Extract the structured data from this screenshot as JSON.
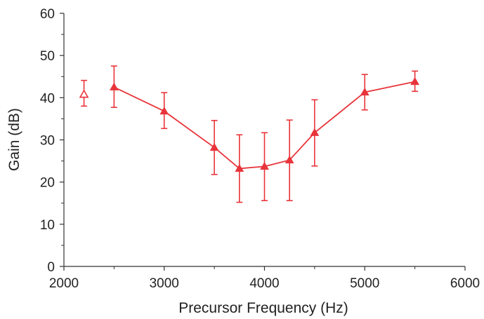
{
  "chart_data": {
    "type": "line",
    "title": "",
    "xlabel": "Precursor Frequency (Hz)",
    "ylabel": "Gain (dB)",
    "xlim": [
      2000,
      6000
    ],
    "ylim": [
      0,
      60
    ],
    "x_ticks": [
      2000,
      3000,
      4000,
      5000,
      6000
    ],
    "y_ticks": [
      0,
      10,
      20,
      30,
      40,
      50,
      60
    ],
    "grid": false,
    "legend": "none",
    "color": "#e8343a",
    "series": [
      {
        "marker": "filled-triangle",
        "connected": true,
        "x": [
          2500,
          3000,
          3500,
          3750,
          4000,
          4250,
          4500,
          5000,
          5500
        ],
        "y": [
          42.5,
          36.8,
          28.2,
          23.2,
          23.7,
          25.2,
          31.7,
          41.3,
          43.8
        ],
        "error_low": [
          37.7,
          32.7,
          21.8,
          15.2,
          15.6,
          15.6,
          23.8,
          37.1,
          41.5
        ],
        "error_high": [
          47.5,
          41.2,
          34.6,
          31.2,
          31.7,
          34.7,
          39.5,
          45.5,
          46.3
        ]
      },
      {
        "marker": "open-triangle",
        "connected": false,
        "x": [
          2200
        ],
        "y": [
          40.8
        ],
        "error_low": [
          38.0
        ],
        "error_high": [
          44.1
        ]
      }
    ]
  }
}
